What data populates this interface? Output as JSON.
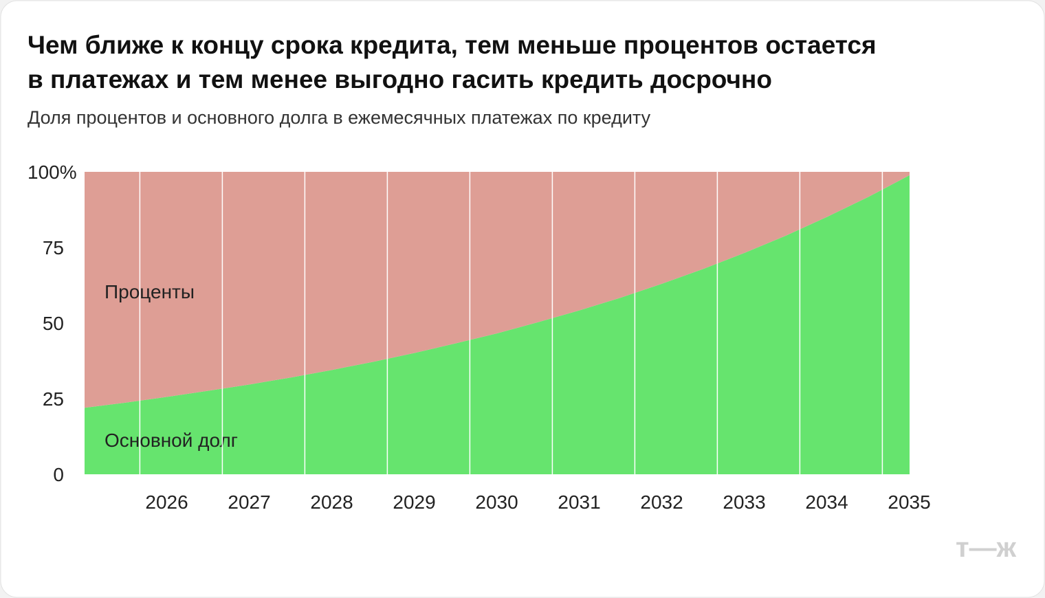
{
  "chart_data": {
    "type": "stacked_area",
    "title": [
      "Чем ближе к концу срока кредита, тем меньше процентов остается",
      "в платежах и тем менее выгодно гасить кредить досрочно"
    ],
    "subtitle": "Доля процентов и основного долга в ежемесячных платежах по кредиту",
    "x": [
      2025.33,
      2025.83,
      2026.33,
      2026.83,
      2027.33,
      2027.83,
      2028.33,
      2028.83,
      2029.33,
      2029.83,
      2030.33,
      2030.83,
      2031.33,
      2031.83,
      2032.33,
      2032.83,
      2033.33,
      2033.83,
      2034.33,
      2034.83,
      2035.33
    ],
    "series": [
      {
        "name": "Основной долг",
        "color": "#66e46e",
        "values": [
          22.0,
          23.7,
          25.6,
          27.6,
          29.7,
          32.0,
          34.5,
          37.2,
          40.1,
          43.3,
          46.6,
          50.3,
          54.2,
          58.4,
          63.0,
          67.9,
          73.2,
          78.9,
          85.1,
          91.7,
          98.9
        ]
      },
      {
        "name": "Проценты",
        "color": "#de9e95",
        "values": [
          78.0,
          76.3,
          74.4,
          72.4,
          70.3,
          68.0,
          65.5,
          62.8,
          59.9,
          56.7,
          53.4,
          49.7,
          45.8,
          41.6,
          37.0,
          32.1,
          26.8,
          21.1,
          14.9,
          8.3,
          1.1
        ]
      }
    ],
    "xlim": [
      2025.33,
      2035.33
    ],
    "xticks": [
      2026,
      2027,
      2028,
      2029,
      2030,
      2031,
      2032,
      2033,
      2034,
      2035
    ],
    "ylim": [
      0,
      100
    ],
    "yticks": [
      0,
      25,
      50,
      75,
      {
        "value": 100,
        "label": "100%"
      }
    ],
    "grid": true
  },
  "logo": "т—ж"
}
